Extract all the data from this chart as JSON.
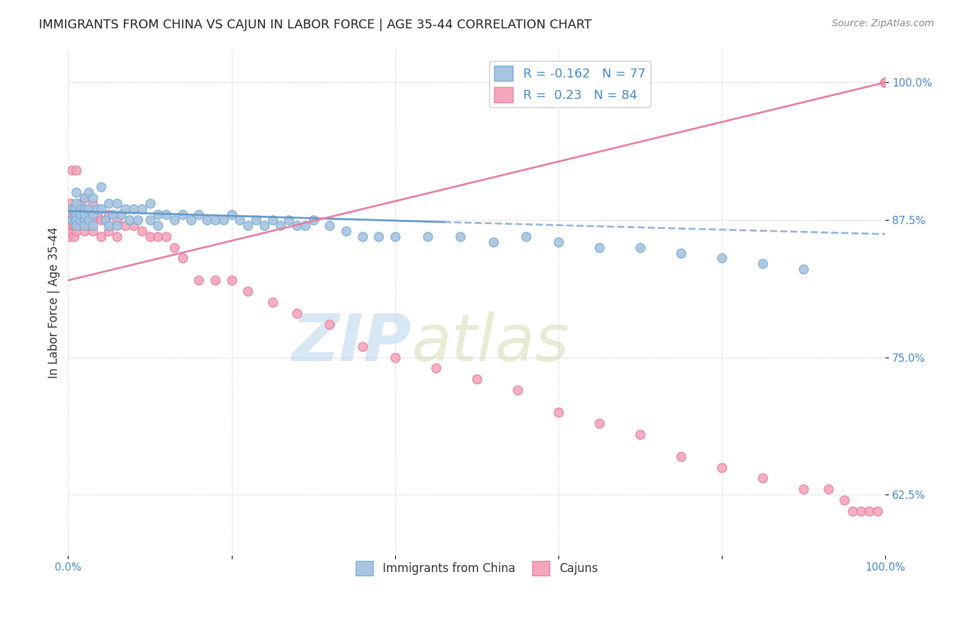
{
  "title": "IMMIGRANTS FROM CHINA VS CAJUN IN LABOR FORCE | AGE 35-44 CORRELATION CHART",
  "source": "Source: ZipAtlas.com",
  "ylabel": "In Labor Force | Age 35-44",
  "x_min": 0.0,
  "x_max": 1.0,
  "y_min": 0.57,
  "y_max": 1.03,
  "y_ticks": [
    0.625,
    0.75,
    0.875,
    1.0
  ],
  "y_tick_labels": [
    "62.5%",
    "75.0%",
    "87.5%",
    "100.0%"
  ],
  "china_color": "#a8c4e0",
  "china_edge_color": "#7aafd4",
  "cajun_color": "#f4a7b9",
  "cajun_edge_color": "#e87fa0",
  "china_R": -0.162,
  "china_N": 77,
  "cajun_R": 0.23,
  "cajun_N": 84,
  "legend_label_china": "Immigrants from China",
  "legend_label_cajun": "Cajuns",
  "trendline_china_color": "#6699cc",
  "trendline_cajun_color": "#e87fa0",
  "watermark_zip": "ZIP",
  "watermark_atlas": "atlas",
  "background_color": "#ffffff",
  "grid_color": "#dddddd",
  "tick_color": "#4488cc",
  "china_scatter_x": [
    0.005,
    0.005,
    0.008,
    0.008,
    0.01,
    0.01,
    0.01,
    0.01,
    0.01,
    0.015,
    0.015,
    0.015,
    0.02,
    0.02,
    0.02,
    0.02,
    0.02,
    0.025,
    0.025,
    0.025,
    0.03,
    0.03,
    0.03,
    0.035,
    0.04,
    0.04,
    0.045,
    0.05,
    0.05,
    0.055,
    0.06,
    0.06,
    0.065,
    0.07,
    0.075,
    0.08,
    0.085,
    0.09,
    0.1,
    0.1,
    0.11,
    0.11,
    0.12,
    0.13,
    0.14,
    0.15,
    0.16,
    0.17,
    0.18,
    0.19,
    0.2,
    0.21,
    0.22,
    0.23,
    0.24,
    0.25,
    0.26,
    0.27,
    0.28,
    0.29,
    0.3,
    0.32,
    0.34,
    0.36,
    0.38,
    0.4,
    0.44,
    0.48,
    0.52,
    0.56,
    0.6,
    0.65,
    0.7,
    0.75,
    0.8,
    0.85,
    0.9
  ],
  "china_scatter_y": [
    0.875,
    0.885,
    0.875,
    0.885,
    0.88,
    0.875,
    0.87,
    0.89,
    0.9,
    0.875,
    0.885,
    0.88,
    0.895,
    0.875,
    0.87,
    0.885,
    0.88,
    0.9,
    0.875,
    0.885,
    0.895,
    0.88,
    0.87,
    0.885,
    0.905,
    0.885,
    0.875,
    0.89,
    0.87,
    0.88,
    0.89,
    0.87,
    0.88,
    0.885,
    0.875,
    0.885,
    0.875,
    0.885,
    0.89,
    0.875,
    0.88,
    0.87,
    0.88,
    0.875,
    0.88,
    0.875,
    0.88,
    0.875,
    0.875,
    0.875,
    0.88,
    0.875,
    0.87,
    0.875,
    0.87,
    0.875,
    0.87,
    0.875,
    0.87,
    0.87,
    0.875,
    0.87,
    0.865,
    0.86,
    0.86,
    0.86,
    0.86,
    0.86,
    0.855,
    0.86,
    0.855,
    0.85,
    0.85,
    0.845,
    0.84,
    0.835,
    0.83
  ],
  "cajun_scatter_x": [
    0.001,
    0.001,
    0.001,
    0.002,
    0.002,
    0.002,
    0.003,
    0.003,
    0.004,
    0.005,
    0.005,
    0.006,
    0.007,
    0.007,
    0.008,
    0.008,
    0.009,
    0.009,
    0.01,
    0.01,
    0.01,
    0.015,
    0.015,
    0.015,
    0.02,
    0.02,
    0.02,
    0.025,
    0.025,
    0.03,
    0.03,
    0.03,
    0.035,
    0.04,
    0.04,
    0.045,
    0.05,
    0.05,
    0.06,
    0.06,
    0.07,
    0.08,
    0.09,
    0.1,
    0.11,
    0.12,
    0.13,
    0.14,
    0.16,
    0.18,
    0.2,
    0.22,
    0.25,
    0.28,
    0.32,
    0.36,
    0.4,
    0.45,
    0.5,
    0.55,
    0.6,
    0.65,
    0.7,
    0.75,
    0.8,
    0.85,
    0.9,
    0.93,
    0.95,
    0.96,
    0.97,
    0.98,
    0.99,
    1.0,
    1.0,
    1.0,
    1.0,
    1.0,
    1.0,
    1.0,
    1.0,
    1.0,
    1.0,
    1.0
  ],
  "cajun_scatter_y": [
    0.88,
    0.87,
    0.86,
    0.885,
    0.875,
    0.865,
    0.89,
    0.88,
    0.875,
    0.92,
    0.87,
    0.88,
    0.87,
    0.86,
    0.885,
    0.875,
    0.88,
    0.87,
    0.92,
    0.875,
    0.865,
    0.89,
    0.88,
    0.87,
    0.895,
    0.875,
    0.865,
    0.88,
    0.87,
    0.89,
    0.875,
    0.865,
    0.88,
    0.875,
    0.86,
    0.875,
    0.88,
    0.865,
    0.875,
    0.86,
    0.87,
    0.87,
    0.865,
    0.86,
    0.86,
    0.86,
    0.85,
    0.84,
    0.82,
    0.82,
    0.82,
    0.81,
    0.8,
    0.79,
    0.78,
    0.76,
    0.75,
    0.74,
    0.73,
    0.72,
    0.7,
    0.69,
    0.68,
    0.66,
    0.65,
    0.64,
    0.63,
    0.63,
    0.62,
    0.61,
    0.61,
    0.61,
    0.61,
    1.0,
    1.0,
    1.0,
    1.0,
    1.0,
    1.0,
    1.0,
    1.0,
    1.0,
    1.0,
    1.0
  ],
  "china_trend_x0": 0.0,
  "china_trend_y0": 0.883,
  "china_trend_x1": 0.46,
  "china_trend_y1": 0.873,
  "china_trend_x2": 1.0,
  "china_trend_y2": 0.862,
  "cajun_trend_x0": 0.0,
  "cajun_trend_y0": 0.82,
  "cajun_trend_x1": 1.0,
  "cajun_trend_y1": 1.0
}
